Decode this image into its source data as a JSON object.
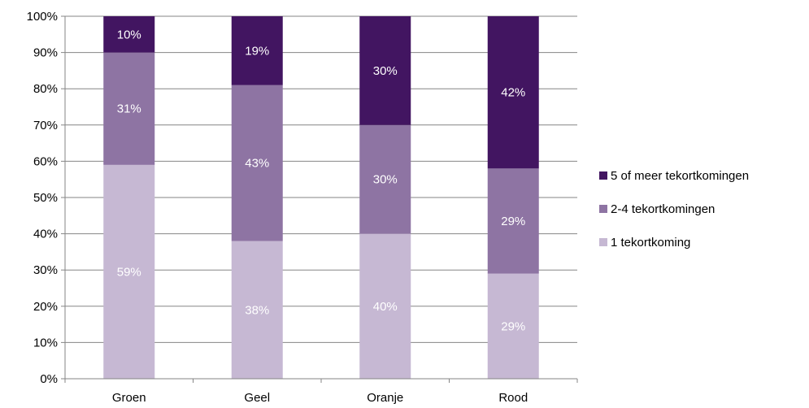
{
  "chart_data": {
    "type": "bar",
    "stacked": true,
    "categories": [
      "Groen",
      "Geel",
      "Oranje",
      "Rood"
    ],
    "series": [
      {
        "name": "1 tekortkoming",
        "values": [
          59,
          38,
          40,
          29
        ],
        "labels": [
          "59%",
          "38%",
          "40%",
          "29%"
        ],
        "color": "#c6b8d3"
      },
      {
        "name": "2-4 tekortkomingen",
        "values": [
          31,
          43,
          30,
          29
        ],
        "labels": [
          "31%",
          "43%",
          "30%",
          "29%"
        ],
        "color": "#8e74a3"
      },
      {
        "name": "5 of meer tekortkomingen",
        "values": [
          10,
          19,
          30,
          42
        ],
        "labels": [
          "10%",
          "19%",
          "30%",
          "42%"
        ],
        "color": "#421561"
      }
    ],
    "y_ticks": [
      "0%",
      "10%",
      "20%",
      "30%",
      "40%",
      "50%",
      "60%",
      "70%",
      "80%",
      "90%",
      "100%"
    ],
    "ylim": [
      0,
      100
    ],
    "grid": true,
    "legend_position": "right",
    "title": "",
    "xlabel": "",
    "ylabel": ""
  }
}
